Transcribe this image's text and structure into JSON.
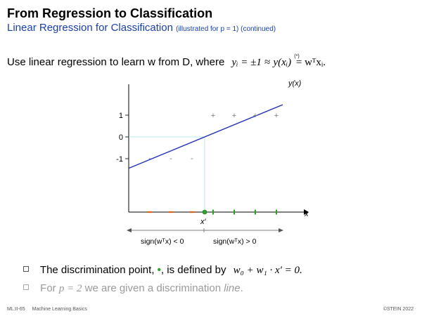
{
  "slide": {
    "title": "From Regression to Classification",
    "subtitle": "Linear Regression for Classification",
    "subtitle_note": "(illustrated for p = 1)  (continued)",
    "lead": {
      "text": "Use linear regression to learn w from D, where",
      "formula_left": "yᵢ = ±1",
      "approx": "≈",
      "formula_right_1": "y(xᵢ)",
      "star": "(*)",
      "formula_right_2": "= wᵀxᵢ."
    },
    "bullets": [
      {
        "pre": "The discrimination point,",
        "dot": "•",
        "post": ", is defined by",
        "formula": "w₀ + w₁ · x′ = 0."
      },
      {
        "pre": "For",
        "formula": "p = 2",
        "post": "we are given a discrimination",
        "emph": "line",
        "end": "."
      }
    ],
    "footer": {
      "code": "ML:II-65",
      "course": "Machine Learning Basics",
      "copyright": "©STEIN 2022"
    }
  },
  "chart_data": {
    "type": "scatter",
    "ylabel": "y(x)",
    "xlabel": "x",
    "ytick_labels": [
      "1",
      "0",
      "-1"
    ],
    "yticks": [
      1,
      0,
      -1
    ],
    "threshold_label": "x′",
    "line": {
      "color": "#1f2fb8",
      "description": "regression line y = wᵀx"
    },
    "plus_points": {
      "marker": "+",
      "x": [
        4,
        5,
        6,
        7
      ],
      "y": [
        1,
        1,
        1,
        1
      ]
    },
    "minus_points": {
      "marker": "-",
      "x": [
        1,
        2,
        3
      ],
      "y": [
        -1,
        -1,
        -1
      ]
    },
    "threshold_x": 3.6,
    "axis_labels_below": [
      "sign(wᵀx) < 0",
      "sign(wᵀx) > 0"
    ],
    "colors": {
      "negative": "#e06020",
      "positive": "#2aa52a",
      "line": "#1f2fb8",
      "guide": "#9fe0e8"
    }
  }
}
